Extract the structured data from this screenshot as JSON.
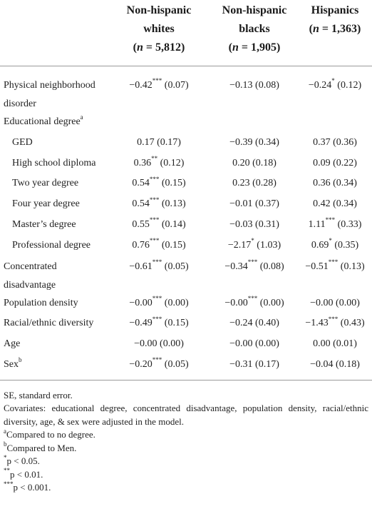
{
  "columns": [
    {
      "line1": "Non-hispanic",
      "line2": "whites",
      "n_label": "n",
      "n_value": "= 5,812"
    },
    {
      "line1": "Non-hispanic",
      "line2": "blacks",
      "n_label": "n",
      "n_value": "= 1,905"
    },
    {
      "line1": "Hispanics",
      "line2": "",
      "n_label": "n",
      "n_value": "= 1,363"
    }
  ],
  "rows": [
    {
      "label": "Physical neighborhood disorder",
      "sup": "",
      "indent": false,
      "tall": true,
      "cells": [
        {
          "v": "−0.42",
          "s": "***",
          "se": "(0.07)"
        },
        {
          "v": "−0.13",
          "s": "",
          "se": "(0.08)"
        },
        {
          "v": "−0.24",
          "s": "*",
          "se": "(0.12)"
        }
      ]
    },
    {
      "label": "Educational degree",
      "sup": "a",
      "indent": false,
      "tall": false,
      "cells": []
    },
    {
      "label": "GED",
      "sup": "",
      "indent": true,
      "tall": false,
      "cells": [
        {
          "v": "0.17",
          "s": "",
          "se": "(0.17)"
        },
        {
          "v": "−0.39",
          "s": "",
          "se": "(0.34)"
        },
        {
          "v": "0.37",
          "s": "",
          "se": "(0.36)"
        }
      ]
    },
    {
      "label": "High school diploma",
      "sup": "",
      "indent": true,
      "tall": false,
      "cells": [
        {
          "v": "0.36",
          "s": "**",
          "se": "(0.12)"
        },
        {
          "v": "0.20",
          "s": "",
          "se": "(0.18)"
        },
        {
          "v": "0.09",
          "s": "",
          "se": "(0.22)"
        }
      ]
    },
    {
      "label": "Two year degree",
      "sup": "",
      "indent": true,
      "tall": false,
      "cells": [
        {
          "v": "0.54",
          "s": "***",
          "se": "(0.15)"
        },
        {
          "v": "0.23",
          "s": "",
          "se": "(0.28)"
        },
        {
          "v": "0.36",
          "s": "",
          "se": "(0.34)"
        }
      ]
    },
    {
      "label": "Four year degree",
      "sup": "",
      "indent": true,
      "tall": false,
      "cells": [
        {
          "v": "0.54",
          "s": "***",
          "se": "(0.13)"
        },
        {
          "v": "−0.01",
          "s": "",
          "se": "(0.37)"
        },
        {
          "v": "0.42",
          "s": "",
          "se": "(0.34)"
        }
      ]
    },
    {
      "label": "Master’s degree",
      "sup": "",
      "indent": true,
      "tall": false,
      "cells": [
        {
          "v": "0.55",
          "s": "***",
          "se": "(0.14)"
        },
        {
          "v": "−0.03",
          "s": "",
          "se": "(0.31)"
        },
        {
          "v": "1.11",
          "s": "***",
          "se": "(0.33)"
        }
      ]
    },
    {
      "label": "Professional degree",
      "sup": "",
      "indent": true,
      "tall": false,
      "cells": [
        {
          "v": "0.76",
          "s": "***",
          "se": "(0.15)"
        },
        {
          "v": "−2.17",
          "s": "*",
          "se": "(1.03)"
        },
        {
          "v": "0.69",
          "s": "*",
          "se": "(0.35)"
        }
      ]
    },
    {
      "label": "Concentrated disadvantage",
      "sup": "",
      "indent": false,
      "tall": true,
      "cells": [
        {
          "v": "−0.61",
          "s": "***",
          "se": "(0.05)"
        },
        {
          "v": "−0.34",
          "s": "***",
          "se": "(0.08)"
        },
        {
          "v": "−0.51",
          "s": "***",
          "se": "(0.13)"
        }
      ]
    },
    {
      "label": "Population density",
      "sup": "",
      "indent": false,
      "tall": false,
      "cells": [
        {
          "v": "−0.00",
          "s": "***",
          "se": "(0.00)"
        },
        {
          "v": "−0.00",
          "s": "***",
          "se": "(0.00)"
        },
        {
          "v": "−0.00",
          "s": "",
          "se": "(0.00)"
        }
      ]
    },
    {
      "label": "Racial/ethnic diversity",
      "sup": "",
      "indent": false,
      "tall": false,
      "cells": [
        {
          "v": "−0.49",
          "s": "***",
          "se": "(0.15)"
        },
        {
          "v": "−0.24",
          "s": "",
          "se": "(0.40)"
        },
        {
          "v": "−1.43",
          "s": "***",
          "se": "(0.43)"
        }
      ]
    },
    {
      "label": "Age",
      "sup": "",
      "indent": false,
      "tall": false,
      "cells": [
        {
          "v": "−0.00",
          "s": "",
          "se": "(0.00)"
        },
        {
          "v": "−0.00",
          "s": "",
          "se": "(0.00)"
        },
        {
          "v": "0.00",
          "s": "",
          "se": "(0.01)"
        }
      ]
    },
    {
      "label": "Sex",
      "sup": "b",
      "indent": false,
      "tall": false,
      "cells": [
        {
          "v": "−0.20",
          "s": "***",
          "se": "(0.05)"
        },
        {
          "v": "−0.31",
          "s": "",
          "se": "(0.17)"
        },
        {
          "v": "−0.04",
          "s": "",
          "se": "(0.18)"
        }
      ]
    }
  ],
  "notes": {
    "se": "SE, standard error.",
    "covariates": "Covariates: educational degree, concentrated disadvantage, population density, racial/ethnic diversity, age, & sex were adjusted in the model.",
    "a_mark": "a",
    "a_text": "Compared to no degree.",
    "b_mark": "b",
    "b_text": "Compared to Men.",
    "p1_mark": "*",
    "p1_text": "p < 0.05.",
    "p2_mark": "**",
    "p2_text": "p < 0.01.",
    "p3_mark": "***",
    "p3_text": "p < 0.001."
  }
}
